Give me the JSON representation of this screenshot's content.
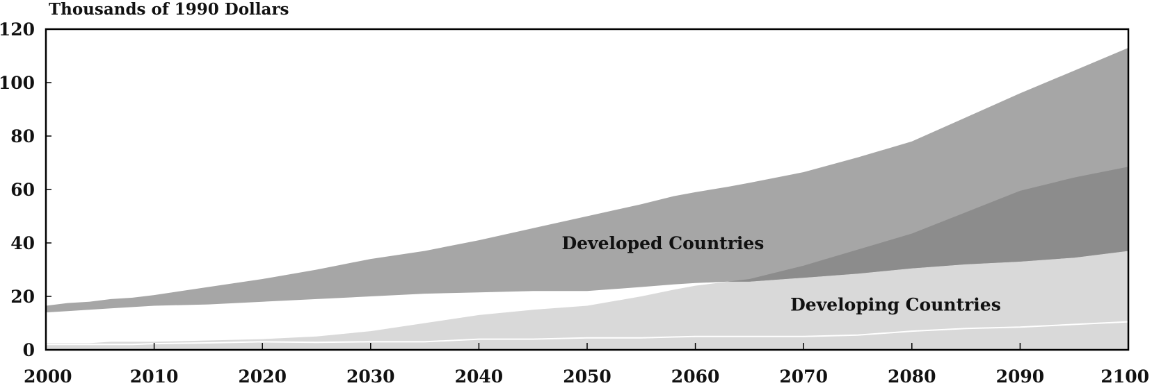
{
  "chart_data": {
    "type": "area",
    "ylabel": "Thousands of 1990 Dollars",
    "xlim": [
      2000,
      2100
    ],
    "ylim": [
      0,
      120
    ],
    "x_ticks": [
      2000,
      2010,
      2020,
      2030,
      2040,
      2050,
      2060,
      2070,
      2080,
      2090,
      2100
    ],
    "y_ticks": [
      0,
      20,
      40,
      60,
      80,
      100,
      120
    ],
    "grid": false,
    "annotations": [
      "Developed Countries",
      "Developing Countries"
    ],
    "colors": {
      "developed_band": "#a6a6a6",
      "overlap_band": "#8c8c8c",
      "developing_band": "#d9d9d9",
      "axis": "#000000"
    },
    "x": [
      2000,
      2002,
      2004,
      2006,
      2008,
      2010,
      2015,
      2020,
      2025,
      2030,
      2035,
      2040,
      2045,
      2050,
      2055,
      2058,
      2060,
      2063,
      2065,
      2070,
      2075,
      2080,
      2085,
      2090,
      2095,
      2100
    ],
    "series": [
      {
        "values_high": [
          16.5,
          17.5,
          18,
          19,
          19.5,
          20.5,
          23.5,
          26.5,
          30,
          34,
          37,
          41,
          45.5,
          50,
          54.5,
          57.5,
          59,
          61,
          62.5,
          66.5,
          72,
          78,
          87,
          96,
          104.5,
          113
        ],
        "values_low": [
          14,
          14.5,
          15,
          15.5,
          16,
          16.5,
          17,
          18,
          19,
          20,
          21,
          21.5,
          22,
          22,
          23.5,
          24.5,
          25,
          25.5,
          25.5,
          27,
          28.5,
          30.5,
          32,
          33,
          34.5,
          37
        ]
      },
      {
        "values_high": [
          2.5,
          2.5,
          2.5,
          3,
          3,
          3,
          3.5,
          4,
          5,
          7,
          10,
          13,
          15,
          16.5,
          20,
          22.5,
          24,
          25.5,
          26.5,
          31.5,
          37.5,
          43.5,
          51.5,
          59.5,
          64.5,
          68.5
        ],
        "values_low": [
          0,
          0,
          0,
          0,
          0,
          0,
          0,
          0,
          0,
          0,
          0,
          0,
          0,
          0,
          0,
          0,
          0,
          0,
          0,
          0,
          0,
          0,
          0,
          0,
          0,
          0
        ]
      }
    ],
    "band_line_values": [
      2,
      2,
      2,
      2,
      2,
      2.3,
      2.6,
      3,
      2.8,
      3,
      3,
      4,
      4,
      4.5,
      4.5,
      4.8,
      5,
      5,
      5,
      5,
      5.5,
      7,
      8,
      8.5,
      9.5,
      10.5
    ]
  }
}
